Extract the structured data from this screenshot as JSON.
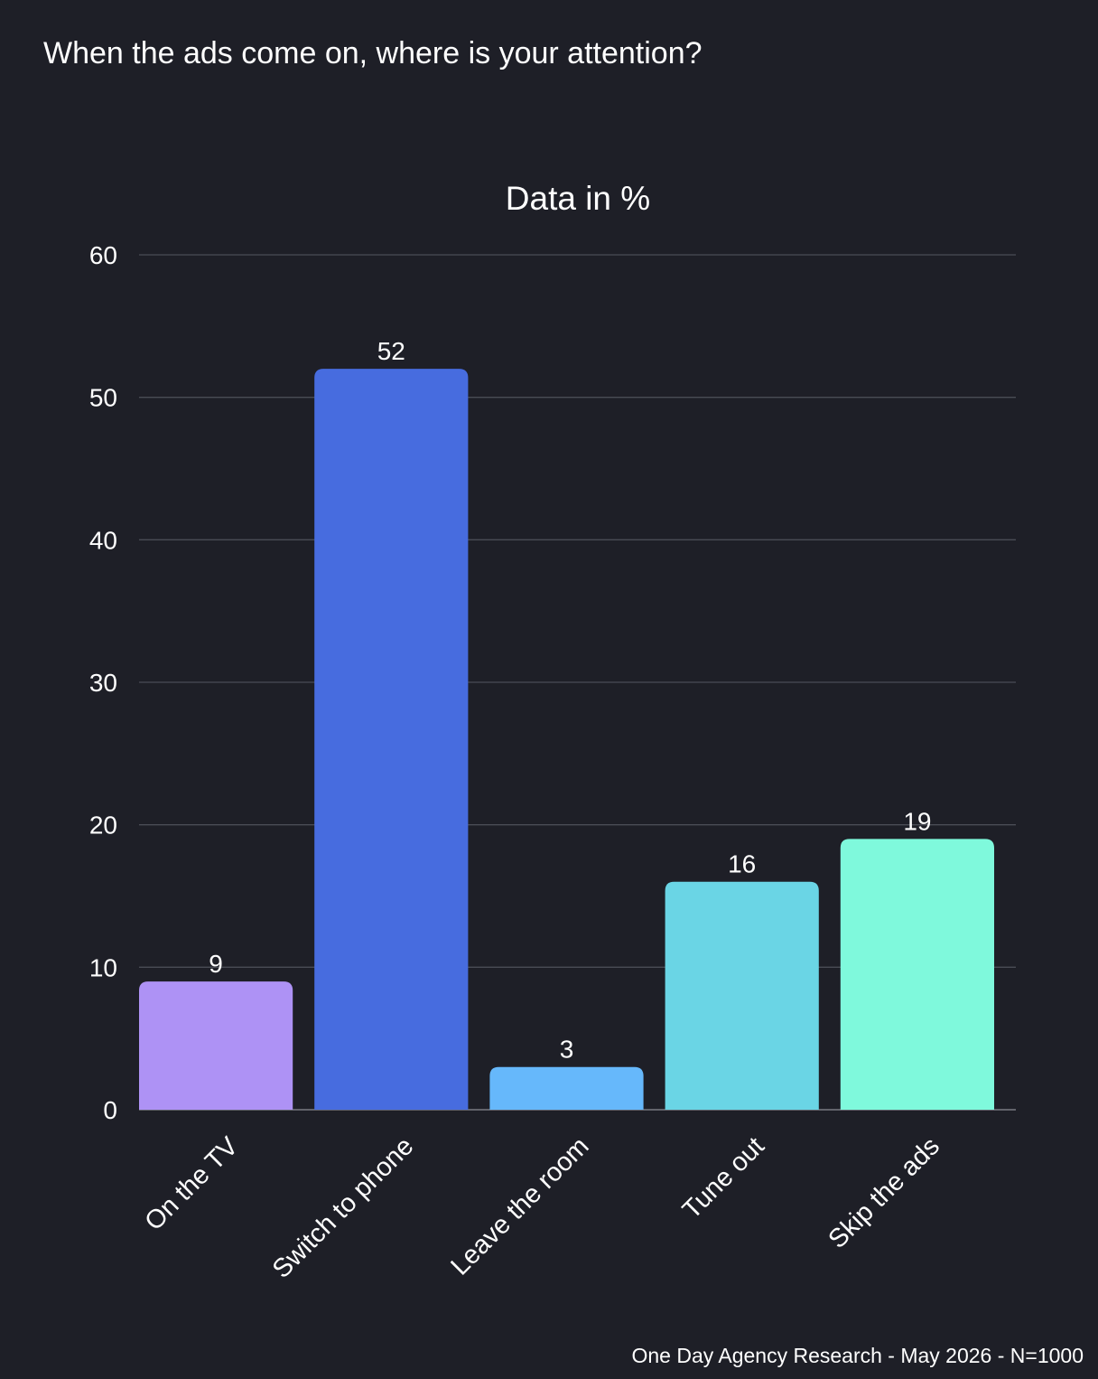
{
  "title": "When the ads come on, where is your attention?",
  "footer": "One Day Agency Research - May 2026 - N=1000",
  "chart_data": {
    "type": "bar",
    "subtitle": "Data in %",
    "categories": [
      "On the TV",
      "Switch to phone",
      "Leave the room",
      "Tune out",
      "Skip the ads"
    ],
    "values": [
      9,
      52,
      3,
      16,
      19
    ],
    "colors": [
      "#ae92f5",
      "#476cdf",
      "#66b8fb",
      "#6ad5e5",
      "#7ff9dc"
    ],
    "ylim": [
      0,
      60
    ],
    "yticks": [
      0,
      10,
      20,
      30,
      40,
      50,
      60
    ],
    "grid": true,
    "data_labels": true,
    "legend": "none"
  }
}
